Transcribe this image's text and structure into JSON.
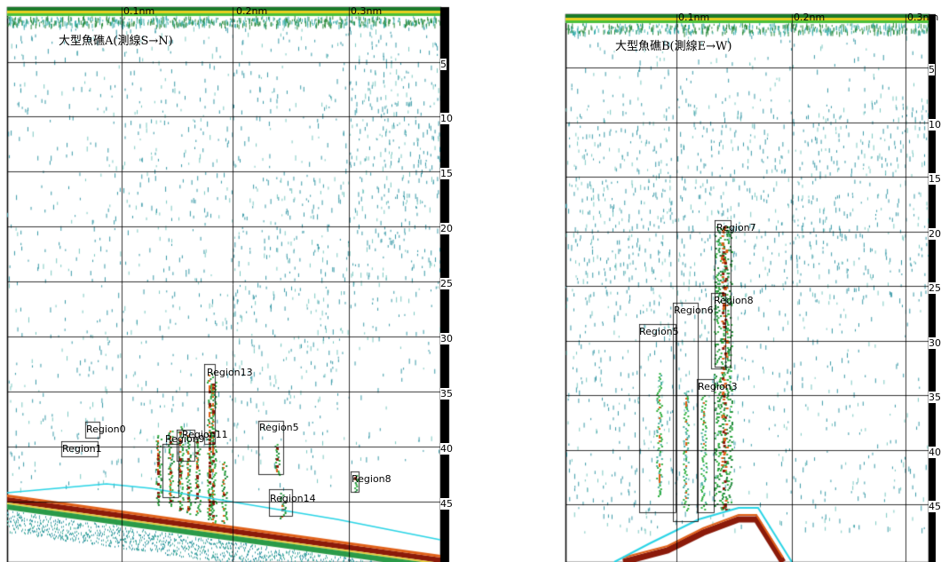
{
  "panel_a": {
    "title": "大型魚礁A(測線S→N)",
    "distance_labels": [
      "0.1nm",
      "0.2nm",
      "0.3nm"
    ],
    "depth_labels": [
      "5",
      "10",
      "15",
      "20",
      "25",
      "30",
      "35",
      "40",
      "45"
    ],
    "regions": [
      {
        "name": "Region0"
      },
      {
        "name": "Region1"
      },
      {
        "name": "Region13"
      },
      {
        "name": "Region9"
      },
      {
        "name": "Region11"
      },
      {
        "name": "Region5"
      },
      {
        "name": "Region14"
      },
      {
        "name": "Region8"
      }
    ]
  },
  "panel_b": {
    "title": "大型魚礁B(測線E→W)",
    "distance_labels": [
      "0.1nm",
      "0.2nm",
      "0.3nm"
    ],
    "depth_labels": [
      "5",
      "10",
      "15",
      "20",
      "25",
      "30",
      "35",
      "40",
      "45"
    ],
    "regions": [
      {
        "name": "Region7"
      },
      {
        "name": "Region8"
      },
      {
        "name": "Region6"
      },
      {
        "name": "Region5"
      },
      {
        "name": "Region3"
      }
    ]
  },
  "colors": {
    "background": "#ffffff",
    "grid": "#000000",
    "scatter": "#3a9aa8",
    "bottom_red": "#8b1a0a",
    "bottom_orange": "#e06018",
    "green": "#2fb040",
    "cyan_line": "#28d4e6",
    "surface_yellow": "#e8d020"
  }
}
